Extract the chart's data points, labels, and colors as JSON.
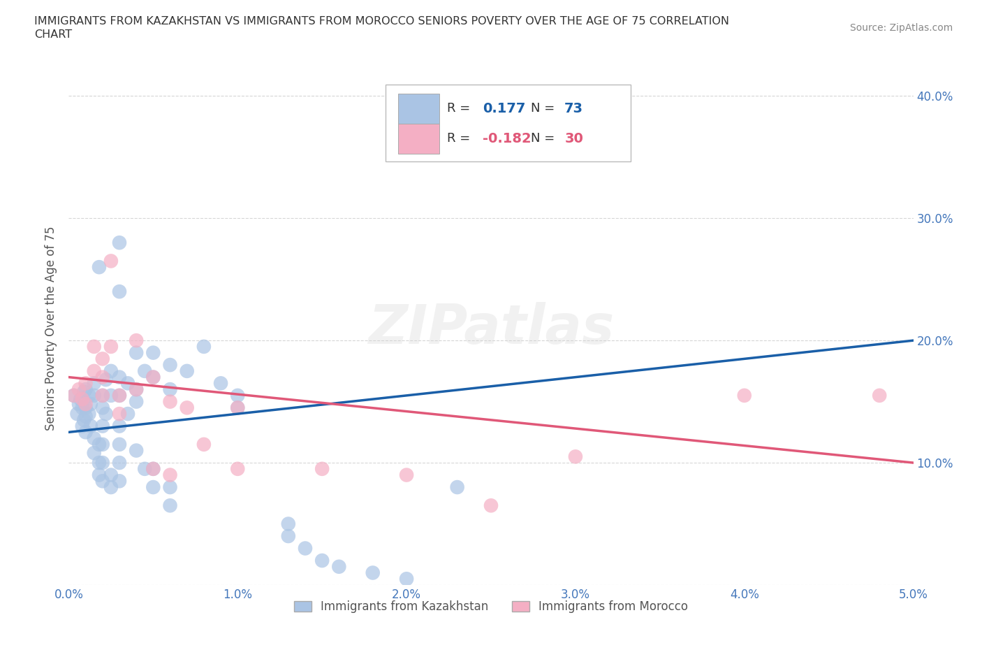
{
  "title_line1": "IMMIGRANTS FROM KAZAKHSTAN VS IMMIGRANTS FROM MOROCCO SENIORS POVERTY OVER THE AGE OF 75 CORRELATION",
  "title_line2": "CHART",
  "source": "Source: ZipAtlas.com",
  "ylabel_label": "Seniors Poverty Over the Age of 75",
  "xlim": [
    0.0,
    0.05
  ],
  "ylim": [
    0.0,
    0.42
  ],
  "x_ticks": [
    0.0,
    0.01,
    0.02,
    0.03,
    0.04,
    0.05
  ],
  "x_tick_labels": [
    "0.0%",
    "1.0%",
    "2.0%",
    "3.0%",
    "4.0%",
    "5.0%"
  ],
  "y_ticks": [
    0.0,
    0.1,
    0.2,
    0.3,
    0.4
  ],
  "y_tick_labels_right": [
    "",
    "10.0%",
    "20.0%",
    "30.0%",
    "40.0%"
  ],
  "watermark": "ZIPatlas",
  "legend1_R": "0.177",
  "legend1_N": "73",
  "legend2_R": "-0.182",
  "legend2_N": "30",
  "kaz_color": "#aac4e4",
  "mor_color": "#f4afc4",
  "kaz_line_color": "#1a5fa8",
  "mor_line_color": "#e05878",
  "background_color": "#ffffff",
  "grid_color": "#cccccc",
  "kaz_scatter": [
    [
      0.0003,
      0.155
    ],
    [
      0.0005,
      0.14
    ],
    [
      0.0006,
      0.148
    ],
    [
      0.0007,
      0.152
    ],
    [
      0.0008,
      0.13
    ],
    [
      0.0008,
      0.145
    ],
    [
      0.0009,
      0.158
    ],
    [
      0.0009,
      0.135
    ],
    [
      0.001,
      0.16
    ],
    [
      0.001,
      0.145
    ],
    [
      0.001,
      0.138
    ],
    [
      0.001,
      0.125
    ],
    [
      0.0012,
      0.155
    ],
    [
      0.0012,
      0.14
    ],
    [
      0.0013,
      0.148
    ],
    [
      0.0013,
      0.13
    ],
    [
      0.0015,
      0.165
    ],
    [
      0.0015,
      0.155
    ],
    [
      0.0015,
      0.12
    ],
    [
      0.0015,
      0.108
    ],
    [
      0.0018,
      0.26
    ],
    [
      0.0018,
      0.115
    ],
    [
      0.0018,
      0.1
    ],
    [
      0.0018,
      0.09
    ],
    [
      0.002,
      0.155
    ],
    [
      0.002,
      0.145
    ],
    [
      0.002,
      0.13
    ],
    [
      0.002,
      0.115
    ],
    [
      0.002,
      0.1
    ],
    [
      0.002,
      0.085
    ],
    [
      0.0022,
      0.168
    ],
    [
      0.0022,
      0.14
    ],
    [
      0.0025,
      0.175
    ],
    [
      0.0025,
      0.155
    ],
    [
      0.0025,
      0.09
    ],
    [
      0.0025,
      0.08
    ],
    [
      0.003,
      0.28
    ],
    [
      0.003,
      0.24
    ],
    [
      0.003,
      0.17
    ],
    [
      0.003,
      0.155
    ],
    [
      0.003,
      0.13
    ],
    [
      0.003,
      0.115
    ],
    [
      0.003,
      0.1
    ],
    [
      0.003,
      0.085
    ],
    [
      0.0035,
      0.165
    ],
    [
      0.0035,
      0.14
    ],
    [
      0.004,
      0.19
    ],
    [
      0.004,
      0.16
    ],
    [
      0.004,
      0.15
    ],
    [
      0.004,
      0.11
    ],
    [
      0.0045,
      0.175
    ],
    [
      0.0045,
      0.095
    ],
    [
      0.005,
      0.19
    ],
    [
      0.005,
      0.17
    ],
    [
      0.005,
      0.095
    ],
    [
      0.005,
      0.08
    ],
    [
      0.006,
      0.18
    ],
    [
      0.006,
      0.16
    ],
    [
      0.006,
      0.08
    ],
    [
      0.006,
      0.065
    ],
    [
      0.007,
      0.175
    ],
    [
      0.008,
      0.195
    ],
    [
      0.009,
      0.165
    ],
    [
      0.01,
      0.155
    ],
    [
      0.01,
      0.145
    ],
    [
      0.013,
      0.05
    ],
    [
      0.013,
      0.04
    ],
    [
      0.014,
      0.03
    ],
    [
      0.015,
      0.02
    ],
    [
      0.016,
      0.015
    ],
    [
      0.018,
      0.01
    ],
    [
      0.02,
      0.005
    ],
    [
      0.023,
      0.08
    ]
  ],
  "mor_scatter": [
    [
      0.0003,
      0.155
    ],
    [
      0.0006,
      0.16
    ],
    [
      0.0008,
      0.152
    ],
    [
      0.001,
      0.165
    ],
    [
      0.001,
      0.148
    ],
    [
      0.0015,
      0.195
    ],
    [
      0.0015,
      0.175
    ],
    [
      0.002,
      0.185
    ],
    [
      0.002,
      0.17
    ],
    [
      0.002,
      0.155
    ],
    [
      0.0025,
      0.265
    ],
    [
      0.0025,
      0.195
    ],
    [
      0.003,
      0.155
    ],
    [
      0.003,
      0.14
    ],
    [
      0.004,
      0.2
    ],
    [
      0.004,
      0.16
    ],
    [
      0.005,
      0.17
    ],
    [
      0.005,
      0.095
    ],
    [
      0.006,
      0.15
    ],
    [
      0.006,
      0.09
    ],
    [
      0.007,
      0.145
    ],
    [
      0.008,
      0.115
    ],
    [
      0.01,
      0.145
    ],
    [
      0.01,
      0.095
    ],
    [
      0.015,
      0.095
    ],
    [
      0.02,
      0.09
    ],
    [
      0.025,
      0.065
    ],
    [
      0.03,
      0.105
    ],
    [
      0.04,
      0.155
    ],
    [
      0.048,
      0.155
    ]
  ]
}
